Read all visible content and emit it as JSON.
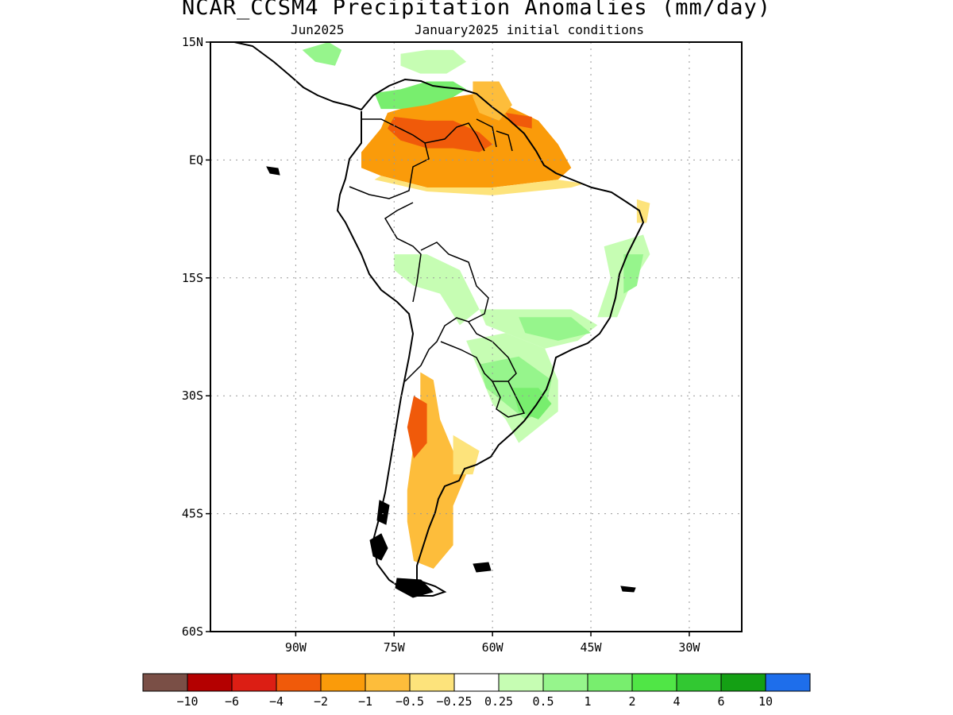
{
  "title": "NCAR_CCSM4 Precipitation Anomalies (mm/day)",
  "subtitle_left": "Jun2025",
  "subtitle_right": "January2025 initial conditions",
  "map": {
    "lon_range": [
      -103,
      -22
    ],
    "lat_range": [
      -60,
      15
    ],
    "lat_ticks": [
      {
        "value": 15,
        "label": "15N"
      },
      {
        "value": 0,
        "label": "EQ"
      },
      {
        "value": -15,
        "label": "15S"
      },
      {
        "value": -30,
        "label": "30S"
      },
      {
        "value": -45,
        "label": "45S"
      },
      {
        "value": -60,
        "label": "60S"
      }
    ],
    "lon_ticks": [
      {
        "value": -90,
        "label": "90W"
      },
      {
        "value": -75,
        "label": "75W"
      },
      {
        "value": -60,
        "label": "60W"
      },
      {
        "value": -45,
        "label": "45W"
      },
      {
        "value": -30,
        "label": "30W"
      }
    ],
    "grid": "dotted"
  },
  "colorbar": {
    "colors": [
      "#7a4f46",
      "#b40000",
      "#dc1e14",
      "#f05a0a",
      "#fa9b0a",
      "#fdbd3b",
      "#fde37b",
      "#ffffff",
      "#c6fdb3",
      "#96f58c",
      "#78ee6e",
      "#50e646",
      "#32c832",
      "#14a014",
      "#1e6eeb"
    ],
    "labels": [
      "−10",
      "−6",
      "−4",
      "−2",
      "−1",
      "−0.5",
      "−0.25",
      "0.25",
      "0.5",
      "1",
      "2",
      "4",
      "6",
      "10"
    ]
  },
  "anomaly_regions": [
    {
      "color": "#fa9b0a",
      "points": [
        [
          -76,
          6
        ],
        [
          -72,
          7
        ],
        [
          -66,
          8
        ],
        [
          -62,
          8.5
        ],
        [
          -58,
          7
        ],
        [
          -53,
          5
        ],
        [
          -50,
          2
        ],
        [
          -48,
          -1
        ],
        [
          -50,
          -2.5
        ],
        [
          -60,
          -3.5
        ],
        [
          -70,
          -3.5
        ],
        [
          -77,
          -2
        ],
        [
          -80,
          -1
        ],
        [
          -80,
          1
        ],
        [
          -77,
          4
        ]
      ]
    },
    {
      "color": "#f05a0a",
      "points": [
        [
          -75,
          5.5
        ],
        [
          -70,
          5
        ],
        [
          -66,
          5
        ],
        [
          -62,
          3.5
        ],
        [
          -60,
          2
        ],
        [
          -62,
          1
        ],
        [
          -66,
          1.5
        ],
        [
          -70,
          1.5
        ],
        [
          -74,
          2.5
        ],
        [
          -76,
          4
        ]
      ]
    },
    {
      "color": "#f05a0a",
      "points": [
        [
          -58,
          6
        ],
        [
          -54,
          5.5
        ],
        [
          -54,
          4
        ],
        [
          -57,
          4.5
        ]
      ]
    },
    {
      "color": "#fde37b",
      "points": [
        [
          -78,
          -2.5
        ],
        [
          -70,
          -4
        ],
        [
          -60,
          -4.5
        ],
        [
          -48,
          -3.5
        ],
        [
          -46,
          -3
        ],
        [
          -50,
          -2.5
        ],
        [
          -60,
          -3.5
        ],
        [
          -70,
          -3.5
        ],
        [
          -77,
          -2
        ]
      ]
    },
    {
      "color": "#78ee6e",
      "points": [
        [
          -78,
          8.5
        ],
        [
          -74,
          9
        ],
        [
          -70,
          10
        ],
        [
          -66,
          10
        ],
        [
          -64,
          9
        ],
        [
          -66,
          8
        ],
        [
          -70,
          7
        ],
        [
          -74,
          6.5
        ],
        [
          -77,
          6.5
        ]
      ]
    },
    {
      "color": "#c6fdb3",
      "points": [
        [
          -74,
          13.5
        ],
        [
          -70,
          14
        ],
        [
          -66,
          14
        ],
        [
          -64,
          12.5
        ],
        [
          -67,
          11
        ],
        [
          -71,
          11
        ],
        [
          -74,
          12
        ]
      ]
    },
    {
      "color": "#96f58c",
      "points": [
        [
          -89,
          14
        ],
        [
          -85,
          15
        ],
        [
          -83,
          14
        ],
        [
          -84,
          12
        ],
        [
          -87,
          12.5
        ]
      ]
    },
    {
      "color": "#fdbd3b",
      "points": [
        [
          -63,
          10
        ],
        [
          -59,
          10
        ],
        [
          -57,
          7
        ],
        [
          -59,
          5
        ],
        [
          -62,
          6
        ],
        [
          -63,
          8
        ]
      ]
    },
    {
      "color": "#c6fdb3",
      "points": [
        [
          -75,
          -12
        ],
        [
          -70,
          -12
        ],
        [
          -65,
          -14
        ],
        [
          -62,
          -19
        ],
        [
          -65,
          -21
        ],
        [
          -68,
          -17
        ],
        [
          -72,
          -16
        ],
        [
          -75,
          -14
        ]
      ]
    },
    {
      "color": "#c6fdb3",
      "points": [
        [
          -62,
          -19
        ],
        [
          -56,
          -19
        ],
        [
          -48,
          -19
        ],
        [
          -44,
          -21
        ],
        [
          -47,
          -23
        ],
        [
          -52,
          -24
        ],
        [
          -58,
          -22
        ],
        [
          -61,
          -21
        ]
      ]
    },
    {
      "color": "#96f58c",
      "points": [
        [
          -56,
          -20
        ],
        [
          -48,
          -20
        ],
        [
          -45,
          -22
        ],
        [
          -50,
          -23
        ],
        [
          -55,
          -22
        ]
      ]
    },
    {
      "color": "#c6fdb3",
      "points": [
        [
          -64,
          -23
        ],
        [
          -58,
          -22
        ],
        [
          -52,
          -24
        ],
        [
          -50,
          -28
        ],
        [
          -50,
          -32
        ],
        [
          -53,
          -34
        ],
        [
          -56,
          -36
        ],
        [
          -58,
          -33
        ],
        [
          -60,
          -31
        ],
        [
          -62,
          -27
        ]
      ]
    },
    {
      "color": "#96f58c",
      "points": [
        [
          -62,
          -26
        ],
        [
          -56,
          -25
        ],
        [
          -51,
          -28
        ],
        [
          -52,
          -32
        ],
        [
          -55,
          -33
        ],
        [
          -58,
          -31
        ],
        [
          -61,
          -29
        ]
      ]
    },
    {
      "color": "#78ee6e",
      "points": [
        [
          -57,
          -29
        ],
        [
          -53,
          -29
        ],
        [
          -51,
          -31
        ],
        [
          -53,
          -33
        ],
        [
          -56,
          -32
        ]
      ]
    },
    {
      "color": "#c6fdb3",
      "points": [
        [
          -43,
          -11
        ],
        [
          -37,
          -9.5
        ],
        [
          -36,
          -12
        ],
        [
          -39,
          -16
        ],
        [
          -41,
          -20
        ],
        [
          -44,
          -20
        ],
        [
          -42,
          -15
        ]
      ]
    },
    {
      "color": "#96f58c",
      "points": [
        [
          -40,
          -12
        ],
        [
          -37,
          -12
        ],
        [
          -38,
          -16
        ],
        [
          -40,
          -17
        ]
      ]
    },
    {
      "color": "#fde37b",
      "points": [
        [
          -38,
          -5
        ],
        [
          -36,
          -5.5
        ],
        [
          -36.5,
          -8
        ],
        [
          -38,
          -8
        ]
      ]
    },
    {
      "color": "#fdbd3b",
      "points": [
        [
          -71,
          -27
        ],
        [
          -69,
          -28
        ],
        [
          -68,
          -33
        ],
        [
          -66,
          -37
        ],
        [
          -64,
          -40
        ],
        [
          -66,
          -44
        ],
        [
          -66,
          -49
        ],
        [
          -69,
          -52
        ],
        [
          -72,
          -51
        ],
        [
          -73,
          -46
        ],
        [
          -73,
          -42
        ],
        [
          -72,
          -36
        ],
        [
          -71,
          -31
        ]
      ]
    },
    {
      "color": "#fde37b",
      "points": [
        [
          -66,
          -35
        ],
        [
          -62,
          -37
        ],
        [
          -63,
          -40
        ],
        [
          -66,
          -40
        ]
      ]
    },
    {
      "color": "#f05a0a",
      "points": [
        [
          -72,
          -30
        ],
        [
          -70,
          -31
        ],
        [
          -70,
          -36
        ],
        [
          -72,
          -38
        ],
        [
          -73,
          -34
        ]
      ]
    }
  ]
}
